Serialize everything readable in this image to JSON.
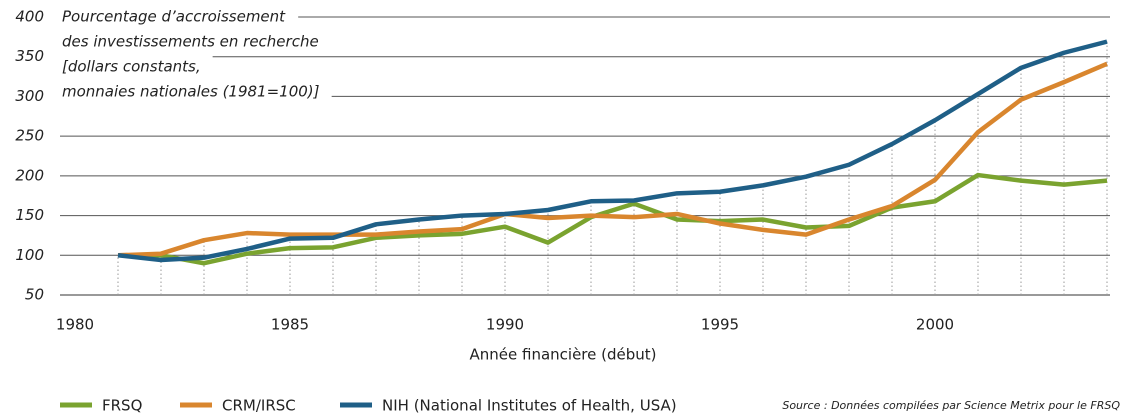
{
  "chart_data": {
    "type": "line",
    "title": [
      "Pourcentage d’accroissement",
      "des investissements en recherche",
      "[dollars constants,",
      "monnaies nationales (1981=100)]"
    ],
    "x_label": "Année financière (début)",
    "source": "Source : Données compilées par Science Metrix pour le FRSQ",
    "x": [
      1981,
      1982,
      1983,
      1984,
      1985,
      1986,
      1987,
      1988,
      1989,
      1990,
      1991,
      1992,
      1993,
      1994,
      1995,
      1996,
      1997,
      1998,
      1999,
      2000,
      2001,
      2002,
      2003,
      2004
    ],
    "series": [
      {
        "name": "FRSQ",
        "color": "#7aa32f",
        "values": [
          100,
          100,
          90,
          102,
          109,
          110,
          122,
          125,
          127,
          136,
          116,
          148,
          165,
          145,
          143,
          145,
          135,
          137,
          160,
          168,
          201,
          194,
          189,
          194
        ]
      },
      {
        "name": "CRM/IRSC",
        "color": "#d9862e",
        "values": [
          100,
          102,
          119,
          128,
          126,
          126,
          126,
          130,
          133,
          152,
          147,
          150,
          148,
          152,
          140,
          132,
          126,
          145,
          162,
          195,
          255,
          296,
          318,
          341
        ]
      },
      {
        "name": "NIH (National Institutes of Health, USA)",
        "color": "#1f5f87",
        "values": [
          100,
          94,
          97,
          108,
          121,
          122,
          139,
          145,
          150,
          152,
          157,
          168,
          169,
          178,
          180,
          188,
          199,
          214,
          240,
          270,
          303,
          336,
          355,
          369
        ]
      }
    ],
    "xlim": [
      1980,
      2004
    ],
    "xticks": [
      1980,
      1985,
      1990,
      1995,
      2000
    ],
    "ylim": [
      50,
      400
    ],
    "yticks": [
      50,
      100,
      150,
      200,
      250,
      300,
      350,
      400
    ],
    "grid": true,
    "legend": "bottom"
  }
}
